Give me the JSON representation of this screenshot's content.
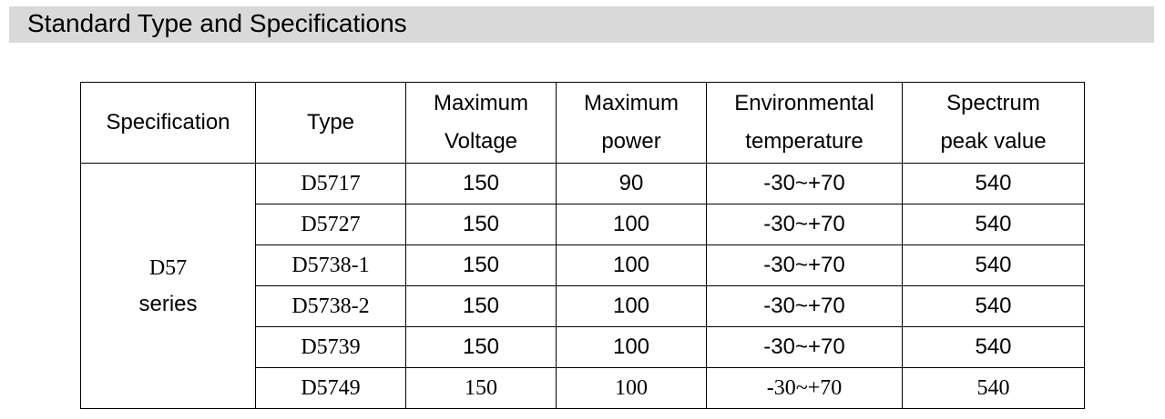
{
  "header": {
    "title": "Standard Type and Specifications"
  },
  "table": {
    "headers": [
      [
        "Specification"
      ],
      [
        "Type"
      ],
      [
        "Maximum",
        "Voltage"
      ],
      [
        "Maximum",
        "power"
      ],
      [
        "Environmental",
        "temperature"
      ],
      [
        "Spectrum",
        "peak value"
      ]
    ],
    "group": [
      "D57",
      "series"
    ],
    "rows": [
      [
        "D5717",
        150,
        90,
        "-30~+70",
        540
      ],
      [
        "D5727",
        150,
        100,
        "-30~+70",
        540
      ],
      [
        "D5738-1",
        150,
        100,
        "-30~+70",
        540
      ],
      [
        "D5738-2",
        150,
        100,
        "-30~+70",
        540
      ],
      [
        "D5739",
        150,
        100,
        "-30~+70",
        540
      ],
      [
        "D5749",
        150,
        100,
        "-30~+70",
        540
      ]
    ]
  }
}
